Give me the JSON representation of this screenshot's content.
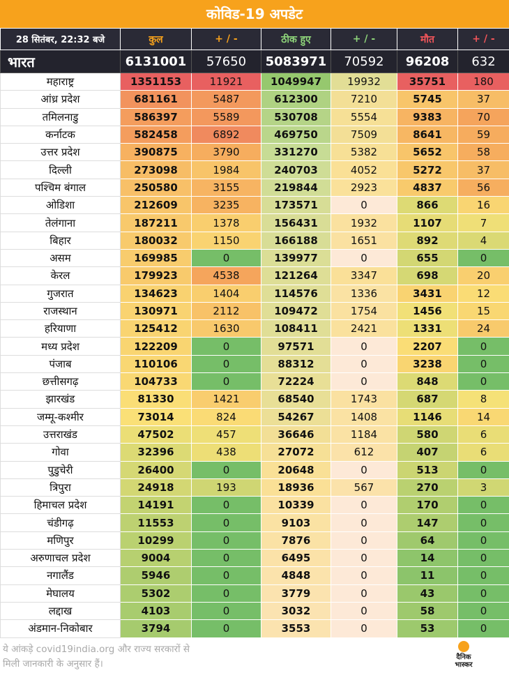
{
  "title": "कोविड-19 अपडेट",
  "header": {
    "date": "28 सितंबर, 22:32 बजे",
    "total": "कुल",
    "change": "+ / -",
    "recovered": "ठीक हुए",
    "deaths": "मौत"
  },
  "colors": {
    "banner": "#f7a21c",
    "header_dark": "#2a2a36",
    "total_label": "#f7a21c",
    "recovered_label": "#8ed47a",
    "deaths_label": "#f2555a"
  },
  "india": {
    "name": "भारत",
    "total": "6131001",
    "total_change": "57650",
    "recovered": "5083971",
    "recovered_change": "70592",
    "deaths": "96208",
    "deaths_change": "632"
  },
  "states": [
    {
      "name": "महाराष्ट्र",
      "total": "1351153",
      "total_change": "11921",
      "recovered": "1049947",
      "recovered_change": "19932",
      "deaths": "35751",
      "deaths_change": "180"
    },
    {
      "name": "आंध्र प्रदेश",
      "total": "681161",
      "total_change": "5487",
      "recovered": "612300",
      "recovered_change": "7210",
      "deaths": "5745",
      "deaths_change": "37"
    },
    {
      "name": "तमिलनाडु",
      "total": "586397",
      "total_change": "5589",
      "recovered": "530708",
      "recovered_change": "5554",
      "deaths": "9383",
      "deaths_change": "70"
    },
    {
      "name": "कर्नाटक",
      "total": "582458",
      "total_change": "6892",
      "recovered": "469750",
      "recovered_change": "7509",
      "deaths": "8641",
      "deaths_change": "59"
    },
    {
      "name": "उत्तर प्रदेश",
      "total": "390875",
      "total_change": "3790",
      "recovered": "331270",
      "recovered_change": "5382",
      "deaths": "5652",
      "deaths_change": "58"
    },
    {
      "name": "दिल्ली",
      "total": "273098",
      "total_change": "1984",
      "recovered": "240703",
      "recovered_change": "4052",
      "deaths": "5272",
      "deaths_change": "37"
    },
    {
      "name": "पश्चिम बंगाल",
      "total": "250580",
      "total_change": "3155",
      "recovered": "219844",
      "recovered_change": "2923",
      "deaths": "4837",
      "deaths_change": "56"
    },
    {
      "name": "ओडिशा",
      "total": "212609",
      "total_change": "3235",
      "recovered": "173571",
      "recovered_change": "0",
      "deaths": "866",
      "deaths_change": "16"
    },
    {
      "name": "तेलंगाना",
      "total": "187211",
      "total_change": "1378",
      "recovered": "156431",
      "recovered_change": "1932",
      "deaths": "1107",
      "deaths_change": "7"
    },
    {
      "name": "बिहार",
      "total": "180032",
      "total_change": "1150",
      "recovered": "166188",
      "recovered_change": "1651",
      "deaths": "892",
      "deaths_change": "4"
    },
    {
      "name": "असम",
      "total": "169985",
      "total_change": "0",
      "recovered": "139977",
      "recovered_change": "0",
      "deaths": "655",
      "deaths_change": "0"
    },
    {
      "name": "केरल",
      "total": "179923",
      "total_change": "4538",
      "recovered": "121264",
      "recovered_change": "3347",
      "deaths": "698",
      "deaths_change": "20"
    },
    {
      "name": "गुजरात",
      "total": "134623",
      "total_change": "1404",
      "recovered": "114576",
      "recovered_change": "1336",
      "deaths": "3431",
      "deaths_change": "12"
    },
    {
      "name": "राजस्थान",
      "total": "130971",
      "total_change": "2112",
      "recovered": "109472",
      "recovered_change": "1754",
      "deaths": "1456",
      "deaths_change": "15"
    },
    {
      "name": "हरियाणा",
      "total": "125412",
      "total_change": "1630",
      "recovered": "108411",
      "recovered_change": "2421",
      "deaths": "1331",
      "deaths_change": "24"
    },
    {
      "name": "मध्य प्रदेश",
      "total": "122209",
      "total_change": "0",
      "recovered": "97571",
      "recovered_change": "0",
      "deaths": "2207",
      "deaths_change": "0"
    },
    {
      "name": "पंजाब",
      "total": "110106",
      "total_change": "0",
      "recovered": "88312",
      "recovered_change": "0",
      "deaths": "3238",
      "deaths_change": "0"
    },
    {
      "name": "छत्तीसगढ़",
      "total": "104733",
      "total_change": "0",
      "recovered": "72224",
      "recovered_change": "0",
      "deaths": "848",
      "deaths_change": "0"
    },
    {
      "name": "झारखंड",
      "total": "81330",
      "total_change": "1421",
      "recovered": "68540",
      "recovered_change": "1743",
      "deaths": "687",
      "deaths_change": "8"
    },
    {
      "name": "जम्मू-कश्मीर",
      "total": "73014",
      "total_change": "824",
      "recovered": "54267",
      "recovered_change": "1408",
      "deaths": "1146",
      "deaths_change": "14"
    },
    {
      "name": "उत्तराखंड",
      "total": "47502",
      "total_change": "457",
      "recovered": "36646",
      "recovered_change": "1184",
      "deaths": "580",
      "deaths_change": "6"
    },
    {
      "name": "गोवा",
      "total": "32396",
      "total_change": "438",
      "recovered": "27072",
      "recovered_change": "612",
      "deaths": "407",
      "deaths_change": "6"
    },
    {
      "name": "पुडुचेरी",
      "total": "26400",
      "total_change": "0",
      "recovered": "20648",
      "recovered_change": "0",
      "deaths": "513",
      "deaths_change": "0"
    },
    {
      "name": "त्रिपुरा",
      "total": "24918",
      "total_change": "193",
      "recovered": "18936",
      "recovered_change": "567",
      "deaths": "270",
      "deaths_change": "3"
    },
    {
      "name": "हिमाचल प्रदेश",
      "total": "14191",
      "total_change": "0",
      "recovered": "10339",
      "recovered_change": "0",
      "deaths": "170",
      "deaths_change": "0"
    },
    {
      "name": "चंडीगढ़",
      "total": "11553",
      "total_change": "0",
      "recovered": "9103",
      "recovered_change": "0",
      "deaths": "147",
      "deaths_change": "0"
    },
    {
      "name": "मणिपुर",
      "total": "10299",
      "total_change": "0",
      "recovered": "7876",
      "recovered_change": "0",
      "deaths": "64",
      "deaths_change": "0"
    },
    {
      "name": "अरुणाचल प्रदेश",
      "total": "9004",
      "total_change": "0",
      "recovered": "6495",
      "recovered_change": "0",
      "deaths": "14",
      "deaths_change": "0"
    },
    {
      "name": "नगालैंड",
      "total": "5946",
      "total_change": "0",
      "recovered": "4848",
      "recovered_change": "0",
      "deaths": "11",
      "deaths_change": "0"
    },
    {
      "name": "मेघालय",
      "total": "5302",
      "total_change": "0",
      "recovered": "3779",
      "recovered_change": "0",
      "deaths": "43",
      "deaths_change": "0"
    },
    {
      "name": "लद्दाख",
      "total": "4103",
      "total_change": "0",
      "recovered": "3032",
      "recovered_change": "0",
      "deaths": "58",
      "deaths_change": "0"
    },
    {
      "name": "अंडमान-निकोबार",
      "total": "3794",
      "total_change": "0",
      "recovered": "3553",
      "recovered_change": "0",
      "deaths": "53",
      "deaths_change": "0"
    }
  ],
  "footer": {
    "note_line1": "ये आंकड़े covid19india.org और राज्य सरकारों से",
    "note_line2": "मिली जानकारी के अनुसार हैं।",
    "logo_line1": "दैनिक",
    "logo_line2": "भास्कर"
  }
}
